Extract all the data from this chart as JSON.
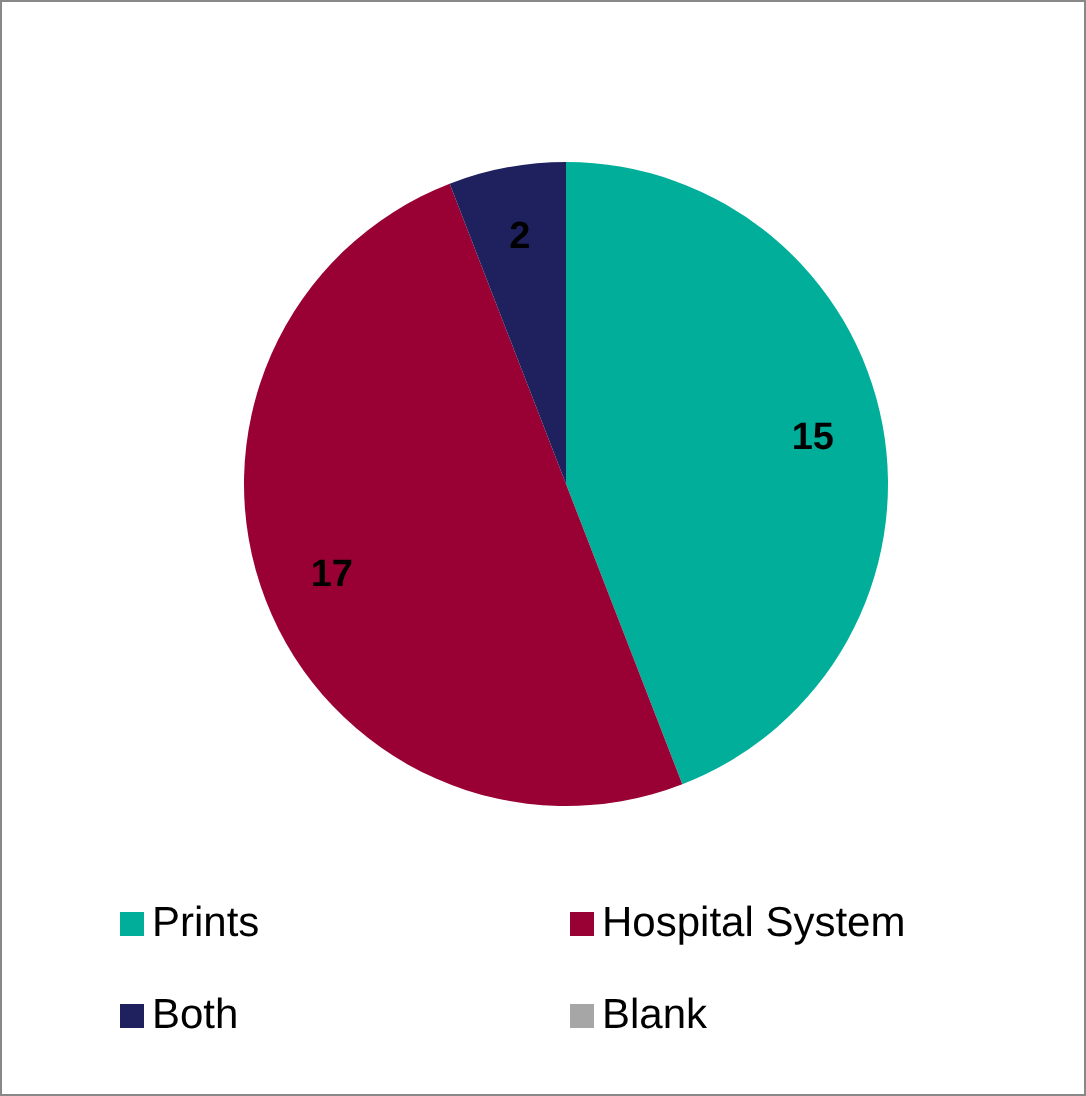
{
  "chart_data": {
    "type": "pie",
    "categories": [
      "Prints",
      "Hospital System",
      "Both",
      "Blank"
    ],
    "values": [
      15,
      17,
      2,
      0
    ],
    "colors": [
      "#00ae9a",
      "#990033",
      "#1f215e",
      "#a6a6a6"
    ],
    "value_labels": [
      "15",
      "17",
      "2",
      null
    ],
    "legend": "bottom"
  }
}
